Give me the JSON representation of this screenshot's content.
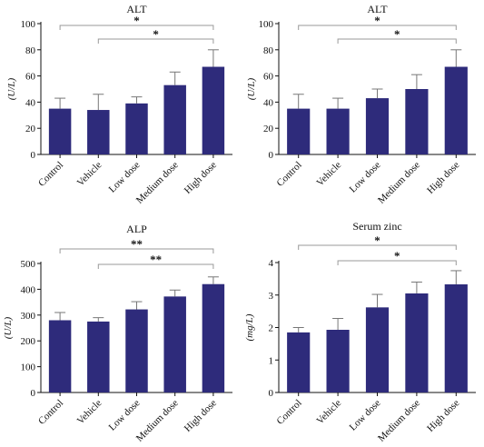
{
  "chart_data": [
    {
      "type": "bar",
      "title": "ALT",
      "xlabel": "",
      "ylabel": "(U/L)",
      "ylim": [
        0,
        100
      ],
      "yticks": [
        0,
        20,
        40,
        60,
        80,
        100
      ],
      "categories": [
        "Control",
        "Vehicle",
        "Low dose",
        "Medium dose",
        "High dose"
      ],
      "values": [
        35,
        34,
        39,
        53,
        67
      ],
      "errors": [
        8,
        12,
        5,
        10,
        13
      ],
      "significance": [
        {
          "from": "Control",
          "to": "High dose",
          "label": "*"
        },
        {
          "from": "Vehicle",
          "to": "High dose",
          "label": "*"
        }
      ],
      "bar_color": "#2e2b7b"
    },
    {
      "type": "bar",
      "title": "ALT",
      "xlabel": "",
      "ylabel": "(U/L)",
      "ylim": [
        0,
        100
      ],
      "yticks": [
        0,
        20,
        40,
        60,
        80,
        100
      ],
      "categories": [
        "Control",
        "Vehicle",
        "Low dose",
        "Medium dose",
        "High dose"
      ],
      "values": [
        35,
        35,
        43,
        50,
        67
      ],
      "errors": [
        11,
        8,
        7,
        11,
        13
      ],
      "significance": [
        {
          "from": "Control",
          "to": "High dose",
          "label": "*"
        },
        {
          "from": "Vehicle",
          "to": "High dose",
          "label": "*"
        }
      ],
      "bar_color": "#2e2b7b"
    },
    {
      "type": "bar",
      "title": "ALP",
      "xlabel": "",
      "ylabel": "(U/L)",
      "ylim": [
        0,
        500
      ],
      "yticks": [
        0,
        100,
        200,
        300,
        400,
        500
      ],
      "categories": [
        "Control",
        "Vehicle",
        "Low dose",
        "Medium dose",
        "High dose"
      ],
      "values": [
        280,
        275,
        322,
        372,
        420
      ],
      "errors": [
        30,
        15,
        30,
        25,
        28
      ],
      "significance": [
        {
          "from": "Control",
          "to": "High dose",
          "label": "**"
        },
        {
          "from": "Vehicle",
          "to": "High dose",
          "label": "**"
        }
      ],
      "bar_color": "#2e2b7b"
    },
    {
      "type": "bar",
      "title": "Serum zinc",
      "xlabel": "",
      "ylabel": "(mg/L)",
      "ylim": [
        0,
        4
      ],
      "yticks": [
        0,
        1,
        2,
        3,
        4
      ],
      "categories": [
        "Control",
        "Vehicle",
        "Low dose",
        "Medium dose",
        "High dose"
      ],
      "values": [
        1.85,
        1.93,
        2.62,
        3.05,
        3.33
      ],
      "errors": [
        0.15,
        0.35,
        0.4,
        0.35,
        0.42
      ],
      "significance": [
        {
          "from": "Control",
          "to": "High dose",
          "label": "*"
        },
        {
          "from": "Vehicle",
          "to": "High dose",
          "label": "*"
        }
      ],
      "bar_color": "#2e2b7b"
    }
  ]
}
